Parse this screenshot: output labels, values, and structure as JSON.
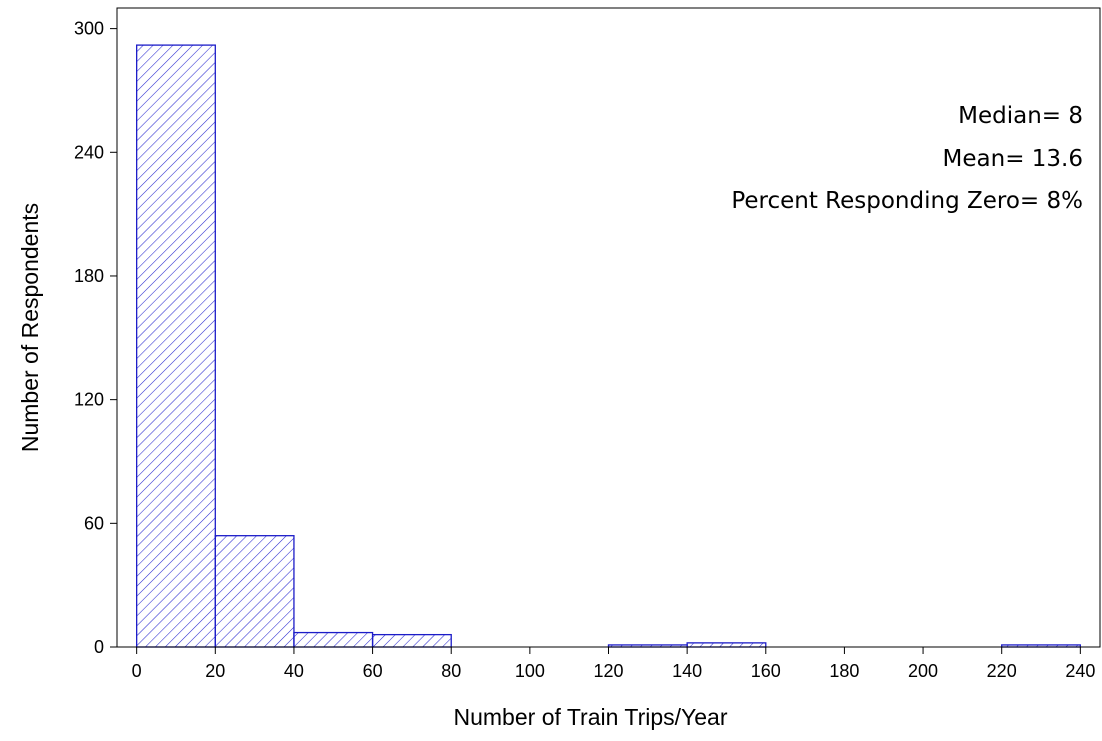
{
  "chart_data": {
    "type": "bar",
    "title": "",
    "xlabel": "Number of Train Trips/Year",
    "ylabel": "Number of Respondents",
    "bins": [
      {
        "x0": 0,
        "x1": 20,
        "value": 292
      },
      {
        "x0": 20,
        "x1": 40,
        "value": 54
      },
      {
        "x0": 40,
        "x1": 60,
        "value": 7
      },
      {
        "x0": 60,
        "x1": 80,
        "value": 6
      },
      {
        "x0": 120,
        "x1": 140,
        "value": 1
      },
      {
        "x0": 140,
        "x1": 160,
        "value": 2
      },
      {
        "x0": 220,
        "x1": 240,
        "value": 1
      }
    ],
    "xlim": [
      -5,
      245
    ],
    "ylim": [
      0,
      310
    ],
    "xticks": [
      0,
      20,
      40,
      60,
      80,
      100,
      120,
      140,
      160,
      180,
      200,
      220,
      240
    ],
    "yticks": [
      0,
      60,
      120,
      180,
      240,
      300
    ],
    "grid": false,
    "bar_color": "#1c1cc8",
    "annotations": [
      "Median= 8",
      "Mean= 13.6",
      "Percent Responding Zero= 8%"
    ]
  }
}
